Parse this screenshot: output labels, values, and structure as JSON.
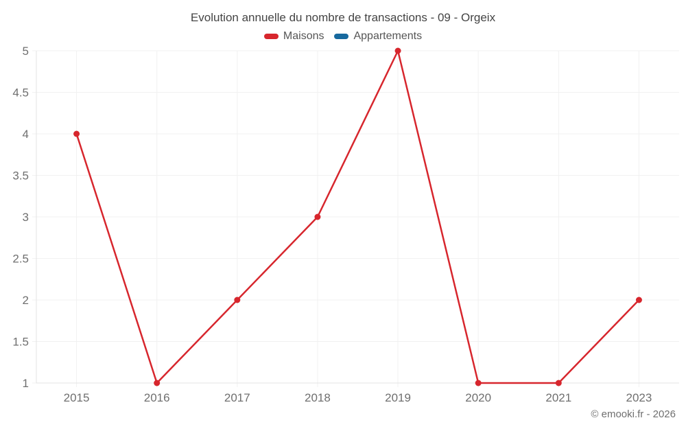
{
  "chart": {
    "title": "Evolution annuelle du nombre de transactions - 09 - Orgeix",
    "watermark": "© emooki.fr - 2026"
  },
  "chart_data": {
    "type": "line",
    "title": "Evolution annuelle du nombre de transactions - 09 - Orgeix",
    "categories": [
      "2015",
      "2016",
      "2017",
      "2018",
      "2019",
      "2020",
      "2021",
      "2023"
    ],
    "series": [
      {
        "name": "Maisons",
        "color": "#d7262d",
        "values": [
          4,
          1,
          2,
          3,
          5,
          1,
          1,
          2
        ]
      },
      {
        "name": "Appartements",
        "color": "#17699e",
        "values": []
      }
    ],
    "xlabel": "",
    "ylabel": "",
    "ylim": [
      1,
      5
    ],
    "yticks": [
      1,
      1.5,
      2,
      2.5,
      3,
      3.5,
      4,
      4.5,
      5
    ],
    "grid": true,
    "legend_position": "top",
    "marker": "circle",
    "colors": {
      "grid": "#f1f1f1",
      "axis": "#e3e3e3",
      "tick_label": "#6f6f6f",
      "title": "#444444",
      "legend_label": "#555555",
      "watermark": "#6f6f6f"
    },
    "annotations": [
      "© emooki.fr - 2026"
    ]
  }
}
